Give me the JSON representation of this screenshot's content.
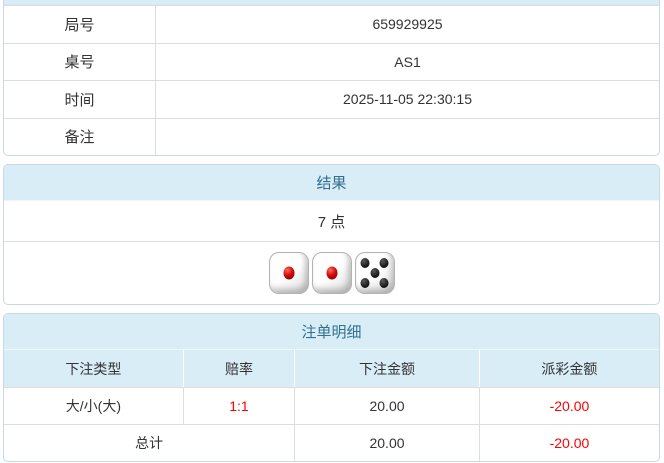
{
  "info_table": {
    "rows": [
      {
        "label": "局号",
        "value": "659929925"
      },
      {
        "label": "桌号",
        "value": "AS1"
      },
      {
        "label": "时间",
        "value": "2025-11-05 22:30:15"
      },
      {
        "label": "备注",
        "value": ""
      }
    ]
  },
  "result_panel": {
    "header": "结果",
    "points": "7 点",
    "dice": [
      1,
      1,
      5
    ],
    "dice_colors": [
      "red",
      "red",
      "black"
    ]
  },
  "bets_panel": {
    "header": "注单明细",
    "columns": [
      "下注类型",
      "赔率",
      "下注金额",
      "派彩金额"
    ],
    "rows": [
      {
        "bet_type": "大/小(大)",
        "odds": "1:1",
        "bet_amount": "20.00",
        "payout": "-20.00"
      }
    ],
    "total": {
      "label": "总计",
      "bet_amount": "20.00",
      "payout": "-20.00"
    }
  },
  "colors": {
    "header_bg": "#d9edf7",
    "header_text": "#31708f",
    "negative_text": "#ff0000",
    "body_text": "#333333",
    "panel_border": "#c5dae6",
    "row_border": "#dddddd"
  }
}
